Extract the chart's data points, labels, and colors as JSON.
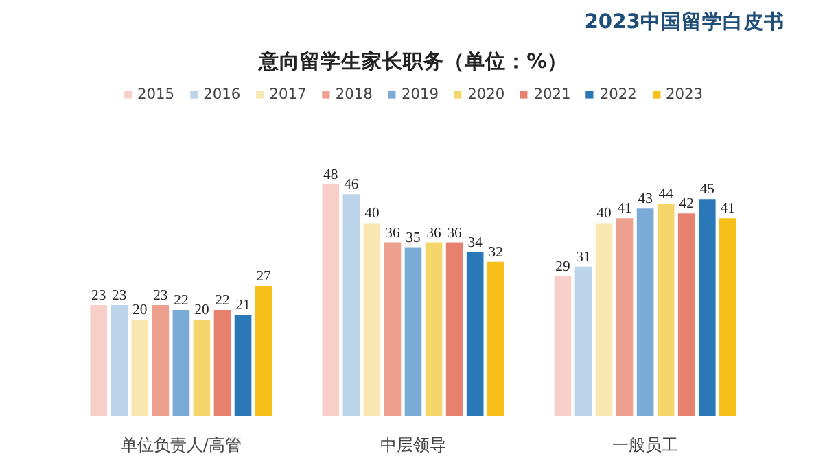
{
  "chart_data": {
    "type": "bar",
    "title": "意向留学生家长职务（单位：%）",
    "annotations": [
      "2023中国留学白皮书"
    ],
    "categories": [
      "单位负责人/高管",
      "中层领导",
      "一般员工"
    ],
    "data_labels": true,
    "legend": "top",
    "grid": false,
    "tick_labels": "x",
    "series": [
      {
        "name": "2015",
        "color": "#f7cfc8",
        "values": [
          23,
          48,
          29
        ]
      },
      {
        "name": "2016",
        "color": "#bcd4ea",
        "values": [
          23,
          46,
          31
        ]
      },
      {
        "name": "2017",
        "color": "#f8e7b0",
        "values": [
          20,
          40,
          40
        ]
      },
      {
        "name": "2018",
        "color": "#eea08f",
        "values": [
          23,
          36,
          41
        ]
      },
      {
        "name": "2019",
        "color": "#7aaad6",
        "values": [
          22,
          35,
          43
        ]
      },
      {
        "name": "2020",
        "color": "#f5d66a",
        "values": [
          20,
          36,
          44
        ]
      },
      {
        "name": "2021",
        "color": "#e8806e",
        "values": [
          22,
          36,
          42
        ]
      },
      {
        "name": "2022",
        "color": "#2a78b8",
        "values": [
          21,
          34,
          45
        ]
      },
      {
        "name": "2023",
        "color": "#f6bf1a",
        "values": [
          27,
          32,
          41
        ]
      }
    ]
  }
}
